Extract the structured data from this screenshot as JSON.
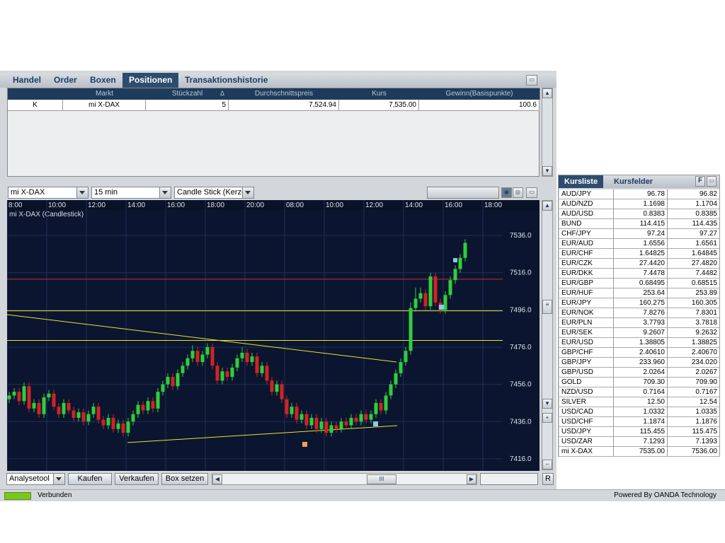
{
  "tabs": [
    "Handel",
    "Order",
    "Boxen",
    "Positionen",
    "Transaktionshistorie"
  ],
  "active_tab": 3,
  "positions": {
    "columns": [
      "Markt",
      "Stückzahl",
      "Durchschnittspreis",
      "Kurs",
      "Gewinn(Basispunkte)"
    ],
    "rows": [
      [
        "K",
        "mi X-DAX",
        "5",
        "7,524.94",
        "7,535.00",
        "100.6"
      ]
    ]
  },
  "chart_toolbar": {
    "instrument": "mi X-DAX",
    "interval": "15 min",
    "chart_style": "Candle Stick (Kerze"
  },
  "chart_data": {
    "type": "candlestick",
    "title": "mi X-DAX (Candlestick)",
    "up_color": "#2fcf3a",
    "down_color": "#d02424",
    "xlim": [
      -0.43,
      99.57
    ],
    "xticks": [
      {
        "value": -0.43,
        "label": "8:00"
      },
      {
        "value": 7.57,
        "label": "10:00"
      },
      {
        "value": 15.57,
        "label": "12:00"
      },
      {
        "value": 23.57,
        "label": "14:00"
      },
      {
        "value": 31.57,
        "label": "16:00"
      },
      {
        "value": 39.57,
        "label": "18:00"
      },
      {
        "value": 47.57,
        "label": "20:00"
      },
      {
        "value": 55.57,
        "label": "08:00"
      },
      {
        "value": 63.57,
        "label": "10:00"
      },
      {
        "value": 71.57,
        "label": "12:00"
      },
      {
        "value": 79.57,
        "label": "14:00"
      },
      {
        "value": 87.57,
        "label": "16:00"
      },
      {
        "value": 95.57,
        "label": "18:00"
      }
    ],
    "ylim": [
      7409.5,
      7549.7
    ],
    "yticks": [
      {
        "value": 7416,
        "label": "7416.0"
      },
      {
        "value": 7436,
        "label": "7436.0"
      },
      {
        "value": 7456,
        "label": "7456.0"
      },
      {
        "value": 7476,
        "label": "7476.0"
      },
      {
        "value": 7496,
        "label": "7496.0"
      },
      {
        "value": 7516,
        "label": "7516.0"
      },
      {
        "value": 7536,
        "label": "7536.0"
      }
    ],
    "levels": [
      {
        "value": 7512.5,
        "color": "#c83232"
      },
      {
        "value": 7495.5,
        "color": "#e6e62a"
      },
      {
        "value": 7479.6,
        "color": "#e6e62a"
      }
    ],
    "candles": [
      [
        7448,
        7452,
        7446,
        7450
      ],
      [
        7450,
        7454,
        7448,
        7452
      ],
      [
        7452,
        7454,
        7445,
        7447
      ],
      [
        7447,
        7457,
        7445,
        7455
      ],
      [
        7455,
        7457,
        7441,
        7443
      ],
      [
        7443,
        7448,
        7441,
        7446
      ],
      [
        7446,
        7448,
        7438,
        7440
      ],
      [
        7440,
        7451,
        7438,
        7449
      ],
      [
        7449,
        7453,
        7447,
        7451
      ],
      [
        7451,
        7453,
        7442,
        7444
      ],
      [
        7444,
        7446,
        7438,
        7440
      ],
      [
        7440,
        7448,
        7438,
        7446
      ],
      [
        7446,
        7448,
        7440,
        7442
      ],
      [
        7442,
        7444,
        7436,
        7438
      ],
      [
        7438,
        7443,
        7436,
        7441
      ],
      [
        7441,
        7443,
        7434,
        7436
      ],
      [
        7436,
        7442,
        7434,
        7440
      ],
      [
        7440,
        7446,
        7438,
        7444
      ],
      [
        7444,
        7446,
        7435,
        7437
      ],
      [
        7437,
        7439,
        7432,
        7434
      ],
      [
        7434,
        7440,
        7432,
        7438
      ],
      [
        7438,
        7440,
        7430,
        7432
      ],
      [
        7432,
        7437,
        7430,
        7435
      ],
      [
        7435,
        7437,
        7428,
        7430
      ],
      [
        7430,
        7438,
        7428,
        7436
      ],
      [
        7436,
        7442,
        7434,
        7440
      ],
      [
        7440,
        7447,
        7438,
        7445
      ],
      [
        7445,
        7447,
        7440,
        7442
      ],
      [
        7442,
        7449,
        7440,
        7447
      ],
      [
        7447,
        7449,
        7441,
        7443
      ],
      [
        7443,
        7454,
        7441,
        7452
      ],
      [
        7452,
        7458,
        7450,
        7456
      ],
      [
        7456,
        7462,
        7454,
        7460
      ],
      [
        7460,
        7462,
        7453,
        7455
      ],
      [
        7455,
        7464,
        7453,
        7462
      ],
      [
        7462,
        7468,
        7460,
        7466
      ],
      [
        7466,
        7472,
        7464,
        7470
      ],
      [
        7470,
        7477,
        7468,
        7474
      ],
      [
        7474,
        7476,
        7466,
        7468
      ],
      [
        7468,
        7474,
        7466,
        7472
      ],
      [
        7472,
        7478,
        7470,
        7476
      ],
      [
        7476,
        7478,
        7464,
        7466
      ],
      [
        7466,
        7468,
        7456,
        7458
      ],
      [
        7458,
        7465,
        7456,
        7463
      ],
      [
        7463,
        7465,
        7458,
        7460
      ],
      [
        7460,
        7467,
        7458,
        7465
      ],
      [
        7465,
        7472,
        7463,
        7470
      ],
      [
        7470,
        7476,
        7468,
        7473
      ],
      [
        7473,
        7475,
        7466,
        7468
      ],
      [
        7468,
        7473,
        7466,
        7471
      ],
      [
        7471,
        7473,
        7460,
        7462
      ],
      [
        7462,
        7468,
        7460,
        7466
      ],
      [
        7466,
        7468,
        7456,
        7458
      ],
      [
        7458,
        7460,
        7450,
        7452
      ],
      [
        7452,
        7458,
        7450,
        7456
      ],
      [
        7456,
        7458,
        7446,
        7448
      ],
      [
        7448,
        7450,
        7438,
        7440
      ],
      [
        7440,
        7446,
        7438,
        7444
      ],
      [
        7444,
        7446,
        7435,
        7437
      ],
      [
        7437,
        7442,
        7435,
        7440
      ],
      [
        7440,
        7442,
        7432,
        7434
      ],
      [
        7434,
        7440,
        7432,
        7438
      ],
      [
        7438,
        7440,
        7430,
        7432
      ],
      [
        7432,
        7438,
        7430,
        7436
      ],
      [
        7436,
        7438,
        7428,
        7430
      ],
      [
        7430,
        7436,
        7428,
        7434
      ],
      [
        7434,
        7436,
        7430,
        7432
      ],
      [
        7432,
        7438,
        7430,
        7436
      ],
      [
        7436,
        7438,
        7432,
        7434
      ],
      [
        7434,
        7440,
        7432,
        7438
      ],
      [
        7438,
        7440,
        7434,
        7436
      ],
      [
        7436,
        7442,
        7434,
        7440
      ],
      [
        7440,
        7442,
        7435,
        7437
      ],
      [
        7437,
        7442,
        7435,
        7440
      ],
      [
        7440,
        7448,
        7438,
        7446
      ],
      [
        7446,
        7448,
        7440,
        7442
      ],
      [
        7442,
        7452,
        7440,
        7450
      ],
      [
        7450,
        7458,
        7448,
        7456
      ],
      [
        7456,
        7464,
        7454,
        7462
      ],
      [
        7462,
        7470,
        7460,
        7468
      ],
      [
        7468,
        7476,
        7466,
        7474
      ],
      [
        7474,
        7500,
        7472,
        7497
      ],
      [
        7497,
        7508,
        7495,
        7502
      ],
      [
        7502,
        7508,
        7500,
        7505
      ],
      [
        7505,
        7507,
        7496,
        7498
      ],
      [
        7498,
        7516,
        7496,
        7514
      ],
      [
        7514,
        7516,
        7498,
        7500
      ],
      [
        7500,
        7502,
        7494,
        7496
      ],
      [
        7496,
        7506,
        7494,
        7504
      ],
      [
        7504,
        7514,
        7502,
        7512
      ],
      [
        7512,
        7520,
        7510,
        7518
      ],
      [
        7518,
        7526,
        7516,
        7524
      ],
      [
        7524,
        7534,
        7522,
        7532
      ]
    ]
  },
  "bottom_toolbar": {
    "tool": "Analysetool",
    "buttons": [
      "Kaufen",
      "Verkaufen",
      "Box setzen"
    ],
    "reset": "R"
  },
  "quotes": {
    "tabs": [
      "Kursliste",
      "Kursfelder"
    ],
    "button": "F",
    "rows": [
      [
        "AUD/JPY",
        "96.78",
        "96.82"
      ],
      [
        "AUD/NZD",
        "1.1698",
        "1.1704"
      ],
      [
        "AUD/USD",
        "0.8383",
        "0.8385"
      ],
      [
        "BUND",
        "114.415",
        "114.435"
      ],
      [
        "CHF/JPY",
        "97.24",
        "97.27"
      ],
      [
        "EUR/AUD",
        "1.6556",
        "1.6561"
      ],
      [
        "EUR/CHF",
        "1.64825",
        "1.64845"
      ],
      [
        "EUR/CZK",
        "27.4420",
        "27.4820"
      ],
      [
        "EUR/DKK",
        "7.4478",
        "7.4482"
      ],
      [
        "EUR/GBP",
        "0.68495",
        "0.68515"
      ],
      [
        "EUR/HUF",
        "253.64",
        "253.89"
      ],
      [
        "EUR/JPY",
        "160.275",
        "160.305"
      ],
      [
        "EUR/NOK",
        "7.8276",
        "7.8301"
      ],
      [
        "EUR/PLN",
        "3.7793",
        "3.7818"
      ],
      [
        "EUR/SEK",
        "9.2607",
        "9.2632"
      ],
      [
        "EUR/USD",
        "1.38805",
        "1.38825"
      ],
      [
        "GBP/CHF",
        "2.40610",
        "2.40670"
      ],
      [
        "GBP/JPY",
        "233.960",
        "234.020"
      ],
      [
        "GBP/USD",
        "2.0264",
        "2.0267"
      ],
      [
        "GOLD",
        "709.30",
        "709.90"
      ],
      [
        "NZD/USD",
        "0.7164",
        "0.7167"
      ],
      [
        "SILVER",
        "12.50",
        "12.54"
      ],
      [
        "USD/CAD",
        "1.0332",
        "1.0335"
      ],
      [
        "USD/CHF",
        "1.1874",
        "1.1876"
      ],
      [
        "USD/JPY",
        "115.455",
        "115.475"
      ],
      [
        "USD/ZAR",
        "7.1293",
        "7.1393"
      ],
      [
        "mi X-DAX",
        "7535.00",
        "7536.00"
      ]
    ]
  },
  "status": {
    "connection": "Verbunden",
    "powered_by": "Powered By OANDA Technology"
  }
}
